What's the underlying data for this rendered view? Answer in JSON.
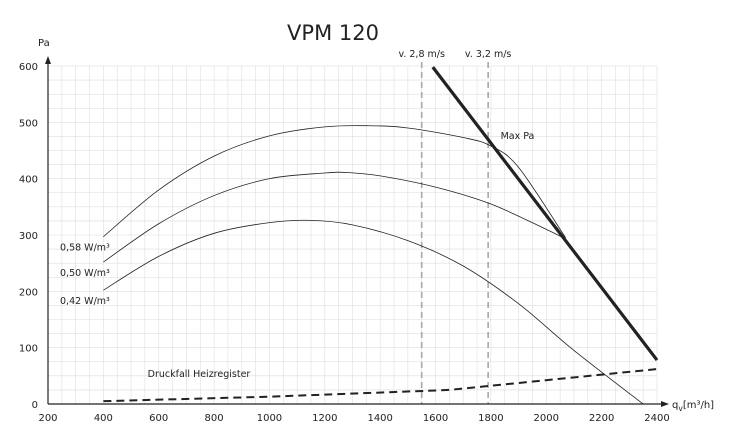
{
  "chart_data": {
    "type": "line",
    "title": "VPM 120",
    "ylabel": "Pa",
    "xlabel": "q",
    "xlabel_sub": "v",
    "xlabel_unit": "[m³/h]",
    "xlim": [
      200,
      2400
    ],
    "ylim": [
      0,
      600
    ],
    "xticks": [
      200,
      400,
      600,
      800,
      1000,
      1200,
      1400,
      1600,
      1800,
      2000,
      2200,
      2400
    ],
    "yticks": [
      0,
      100,
      200,
      300,
      400,
      500,
      600
    ],
    "grid": true,
    "series": [
      {
        "name": "0,58 W/m³",
        "style": "thin",
        "x": [
          400,
          600,
          800,
          1000,
          1200,
          1360,
          1500,
          1700,
          1800,
          1900,
          2070
        ],
        "y": [
          297,
          380,
          440,
          476,
          492,
          494,
          490,
          473,
          458,
          420,
          295
        ]
      },
      {
        "name": "0,50 W/m³",
        "style": "thin",
        "x": [
          400,
          600,
          800,
          1000,
          1200,
          1280,
          1400,
          1600,
          1800,
          2000,
          2070
        ],
        "y": [
          252,
          320,
          370,
          400,
          410,
          411,
          405,
          385,
          355,
          310,
          293
        ]
      },
      {
        "name": "0,42 W/m³",
        "style": "thin",
        "x": [
          400,
          600,
          800,
          1000,
          1150,
          1300,
          1500,
          1700,
          1900,
          2100,
          2350
        ],
        "y": [
          202,
          262,
          303,
          322,
          326,
          318,
          290,
          245,
          178,
          95,
          0
        ]
      },
      {
        "name": "Max Pa",
        "style": "thick",
        "x": [
          1590,
          2400
        ],
        "y": [
          598,
          78
        ]
      },
      {
        "name": "Druckfall Heizregister",
        "style": "dashed",
        "x": [
          400,
          1000,
          1600,
          1650,
          2400
        ],
        "y": [
          5,
          13,
          24,
          25,
          62
        ]
      }
    ],
    "vlines": [
      {
        "label": "v. 2,8 m/s",
        "x": 1550
      },
      {
        "label": "v. 3,2 m/s",
        "x": 1790
      }
    ],
    "annotations": [
      {
        "text": "Max Pa",
        "x": 1835,
        "y": 470
      },
      {
        "text": "Druckfall Heizregister",
        "x": 560,
        "y": 48
      }
    ]
  }
}
